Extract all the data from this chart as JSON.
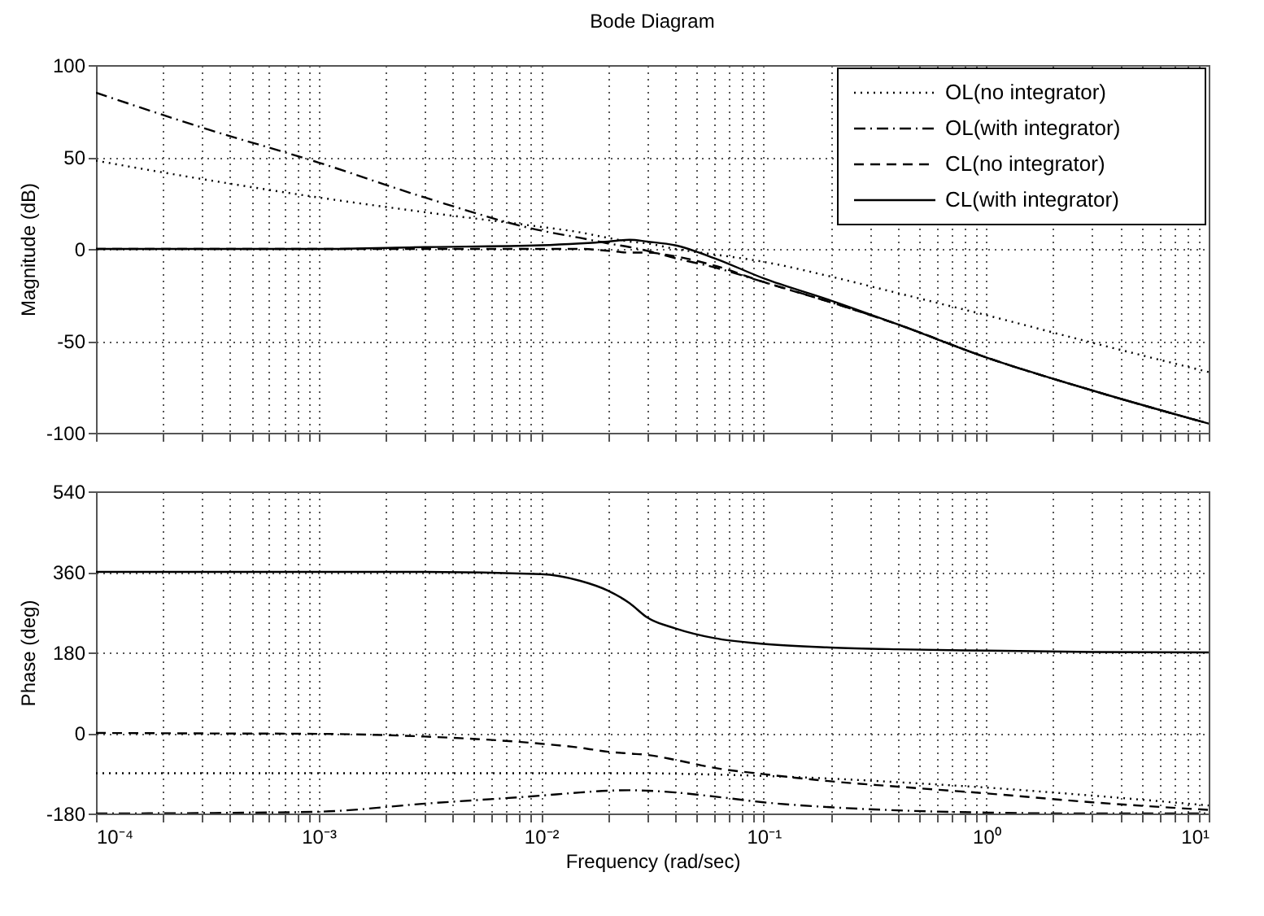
{
  "chart_data": [
    {
      "type": "line",
      "title": "Bode Diagram",
      "ylabel": "Magnitude (dB)",
      "x": [
        0.0001,
        0.0003,
        0.001,
        0.003,
        0.01,
        0.015,
        0.02,
        0.025,
        0.03,
        0.04,
        0.06,
        0.1,
        0.2,
        0.4,
        1,
        3,
        10
      ],
      "series": [
        {
          "name": "OL(no integrator)",
          "color": "#000000",
          "line_style": "dotted",
          "values": [
            48,
            38,
            28,
            20,
            12,
            9,
            6,
            4,
            3,
            0,
            -3,
            -7,
            -15,
            -24,
            -36,
            -51,
            -67
          ]
        },
        {
          "name": "OL(with integrator)",
          "color": "#000000",
          "line_style": "dashdot",
          "values": [
            85,
            66,
            47,
            28,
            10,
            6,
            3,
            1,
            -1,
            -5,
            -10,
            -18,
            -29,
            -41,
            -59,
            -77,
            -95
          ]
        },
        {
          "name": "CL(no integrator)",
          "color": "#000000",
          "line_style": "dashed",
          "values": [
            0,
            0,
            0,
            0,
            0,
            0,
            -1,
            -2,
            -2,
            -4,
            -9,
            -18,
            -29,
            -41,
            -59,
            -77,
            -95
          ]
        },
        {
          "name": "CL(with integrator)",
          "color": "#000000",
          "line_style": "solid",
          "values": [
            0,
            0,
            0,
            1,
            2,
            3,
            4,
            5,
            4,
            2,
            -5,
            -16,
            -28,
            -41,
            -59,
            -77,
            -95
          ]
        }
      ],
      "xlim": [
        0.0001,
        10
      ],
      "xticks": [
        {
          "value": 0.0001,
          "label": null
        },
        {
          "value": 0.0002,
          "label": null
        },
        {
          "value": 0.0003,
          "label": null
        },
        {
          "value": 0.0004,
          "label": null
        },
        {
          "value": 0.0005,
          "label": null
        },
        {
          "value": 0.0006,
          "label": null
        },
        {
          "value": 0.0007,
          "label": null
        },
        {
          "value": 0.0008,
          "label": null
        },
        {
          "value": 0.0009,
          "label": null
        },
        {
          "value": 0.001,
          "label": null
        },
        {
          "value": 0.002,
          "label": null
        },
        {
          "value": 0.003,
          "label": null
        },
        {
          "value": 0.004,
          "label": null
        },
        {
          "value": 0.005,
          "label": null
        },
        {
          "value": 0.006,
          "label": null
        },
        {
          "value": 0.007,
          "label": null
        },
        {
          "value": 0.008,
          "label": null
        },
        {
          "value": 0.009,
          "label": null
        },
        {
          "value": 0.01,
          "label": null
        },
        {
          "value": 0.02,
          "label": null
        },
        {
          "value": 0.03,
          "label": null
        },
        {
          "value": 0.04,
          "label": null
        },
        {
          "value": 0.05,
          "label": null
        },
        {
          "value": 0.06,
          "label": null
        },
        {
          "value": 0.07,
          "label": null
        },
        {
          "value": 0.08,
          "label": null
        },
        {
          "value": 0.09,
          "label": null
        },
        {
          "value": 0.1,
          "label": null
        },
        {
          "value": 0.2,
          "label": null
        },
        {
          "value": 0.3,
          "label": null
        },
        {
          "value": 0.4,
          "label": null
        },
        {
          "value": 0.5,
          "label": null
        },
        {
          "value": 0.6,
          "label": null
        },
        {
          "value": 0.7,
          "label": null
        },
        {
          "value": 0.8,
          "label": null
        },
        {
          "value": 0.9,
          "label": null
        },
        {
          "value": 1,
          "label": null
        },
        {
          "value": 2,
          "label": null
        },
        {
          "value": 3,
          "label": null
        },
        {
          "value": 4,
          "label": null
        },
        {
          "value": 5,
          "label": null
        },
        {
          "value": 6,
          "label": null
        },
        {
          "value": 7,
          "label": null
        },
        {
          "value": 8,
          "label": null
        },
        {
          "value": 9,
          "label": null
        },
        {
          "value": 10,
          "label": null
        }
      ],
      "ylim": [
        -100,
        100
      ],
      "yticks": [
        -100,
        -50,
        0,
        50,
        100
      ],
      "log": "x",
      "grid": true,
      "legend": "top right",
      "tick_labels": "y"
    },
    {
      "type": "line",
      "xlabel": "Frequency  (rad/sec)",
      "ylabel": "Phase (deg)",
      "x": [
        0.0001,
        0.0003,
        0.001,
        0.003,
        0.01,
        0.015,
        0.02,
        0.025,
        0.03,
        0.04,
        0.06,
        0.1,
        0.2,
        0.4,
        1,
        3,
        10
      ],
      "series": [
        {
          "color": "#000000",
          "line_style": "dotted",
          "values": [
            -90,
            -90,
            -90,
            -90,
            -90,
            -90,
            -90,
            -90,
            -90,
            -91,
            -93,
            -96,
            -102,
            -110,
            -122,
            -140,
            -162
          ]
        },
        {
          "color": "#000000",
          "line_style": "dashdot",
          "values": [
            -180,
            -179,
            -176,
            -158,
            -140,
            -133,
            -129,
            -128,
            -129,
            -133,
            -142,
            -155,
            -166,
            -173,
            -178,
            -180,
            -180
          ]
        },
        {
          "color": "#000000",
          "line_style": "dashed",
          "values": [
            0,
            -1,
            -2,
            -8,
            -24,
            -33,
            -42,
            -46,
            -49,
            -60,
            -78,
            -92,
            -108,
            -120,
            -135,
            -155,
            -172
          ]
        },
        {
          "color": "#000000",
          "line_style": "solid",
          "values": [
            360,
            360,
            360,
            360,
            355,
            340,
            318,
            290,
            258,
            234,
            212,
            199,
            191,
            187,
            184,
            181,
            180
          ]
        }
      ],
      "xlim": [
        0.0001,
        10
      ],
      "xticks": [
        {
          "value": 0.0001,
          "label": "10⁻⁴"
        },
        {
          "value": 0.0002,
          "label": null
        },
        {
          "value": 0.0003,
          "label": null
        },
        {
          "value": 0.0004,
          "label": null
        },
        {
          "value": 0.0005,
          "label": null
        },
        {
          "value": 0.0006,
          "label": null
        },
        {
          "value": 0.0007,
          "label": null
        },
        {
          "value": 0.0008,
          "label": null
        },
        {
          "value": 0.0009,
          "label": null
        },
        {
          "value": 0.001,
          "label": "10⁻³"
        },
        {
          "value": 0.002,
          "label": null
        },
        {
          "value": 0.003,
          "label": null
        },
        {
          "value": 0.004,
          "label": null
        },
        {
          "value": 0.005,
          "label": null
        },
        {
          "value": 0.006,
          "label": null
        },
        {
          "value": 0.007,
          "label": null
        },
        {
          "value": 0.008,
          "label": null
        },
        {
          "value": 0.009,
          "label": null
        },
        {
          "value": 0.01,
          "label": "10⁻²"
        },
        {
          "value": 0.02,
          "label": null
        },
        {
          "value": 0.03,
          "label": null
        },
        {
          "value": 0.04,
          "label": null
        },
        {
          "value": 0.05,
          "label": null
        },
        {
          "value": 0.06,
          "label": null
        },
        {
          "value": 0.07,
          "label": null
        },
        {
          "value": 0.08,
          "label": null
        },
        {
          "value": 0.09,
          "label": null
        },
        {
          "value": 0.1,
          "label": "10⁻¹"
        },
        {
          "value": 0.2,
          "label": null
        },
        {
          "value": 0.3,
          "label": null
        },
        {
          "value": 0.4,
          "label": null
        },
        {
          "value": 0.5,
          "label": null
        },
        {
          "value": 0.6,
          "label": null
        },
        {
          "value": 0.7,
          "label": null
        },
        {
          "value": 0.8,
          "label": null
        },
        {
          "value": 0.9,
          "label": null
        },
        {
          "value": 1,
          "label": "10⁰"
        },
        {
          "value": 2,
          "label": null
        },
        {
          "value": 3,
          "label": null
        },
        {
          "value": 4,
          "label": null
        },
        {
          "value": 5,
          "label": null
        },
        {
          "value": 6,
          "label": null
        },
        {
          "value": 7,
          "label": null
        },
        {
          "value": 8,
          "label": null
        },
        {
          "value": 9,
          "label": null
        },
        {
          "value": 10,
          "label": "10¹"
        }
      ],
      "ylim": [
        -180,
        540
      ],
      "yticks": [
        -180,
        0,
        180,
        360,
        540
      ],
      "log": "x",
      "grid": true
    }
  ]
}
